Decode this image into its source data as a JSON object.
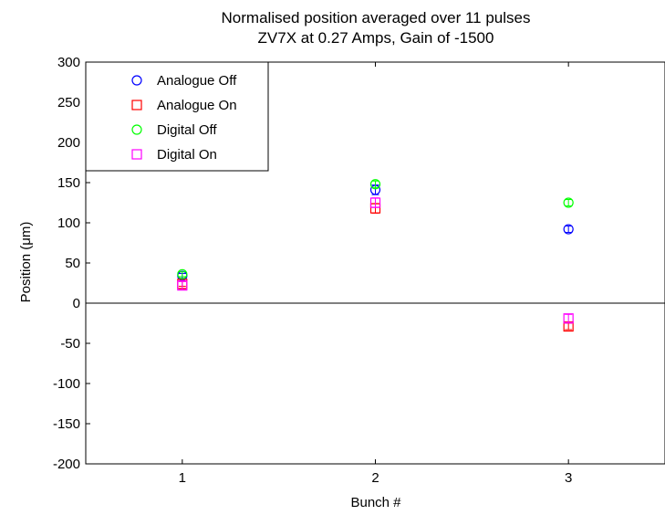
{
  "chart_data": {
    "type": "scatter",
    "title": "Normalised position averaged over 11 pulses",
    "subtitle": "ZV7X at 0.27 Amps, Gain of -1500",
    "xlabel": "Bunch #",
    "ylabel": "Position (μm)",
    "xlim": [
      0.5,
      3.5
    ],
    "ylim": [
      -200,
      300
    ],
    "xticks": [
      1,
      2,
      3
    ],
    "yticks": [
      -200,
      -150,
      -100,
      -50,
      0,
      50,
      100,
      150,
      200,
      250,
      300
    ],
    "zero_line": true,
    "grid": false,
    "legend_position": "top-left",
    "series": [
      {
        "name": "Analogue Off",
        "marker": "circle",
        "color": "#0000ff",
        "x": [
          1,
          2,
          3
        ],
        "y": [
          34,
          141,
          92
        ],
        "err": [
          3,
          6,
          4
        ]
      },
      {
        "name": "Analogue On",
        "marker": "square",
        "color": "#ff0000",
        "x": [
          1,
          2,
          3
        ],
        "y": [
          24,
          118,
          -29
        ],
        "err": [
          3,
          6,
          4
        ]
      },
      {
        "name": "Digital Off",
        "marker": "circle",
        "color": "#00ff00",
        "x": [
          1,
          2,
          3
        ],
        "y": [
          36,
          148,
          125
        ],
        "err": [
          3,
          4,
          4
        ]
      },
      {
        "name": "Digital On",
        "marker": "square",
        "color": "#ff00ff",
        "x": [
          1,
          2,
          3
        ],
        "y": [
          22,
          125,
          -19
        ],
        "err": [
          5,
          6,
          5
        ]
      }
    ]
  }
}
